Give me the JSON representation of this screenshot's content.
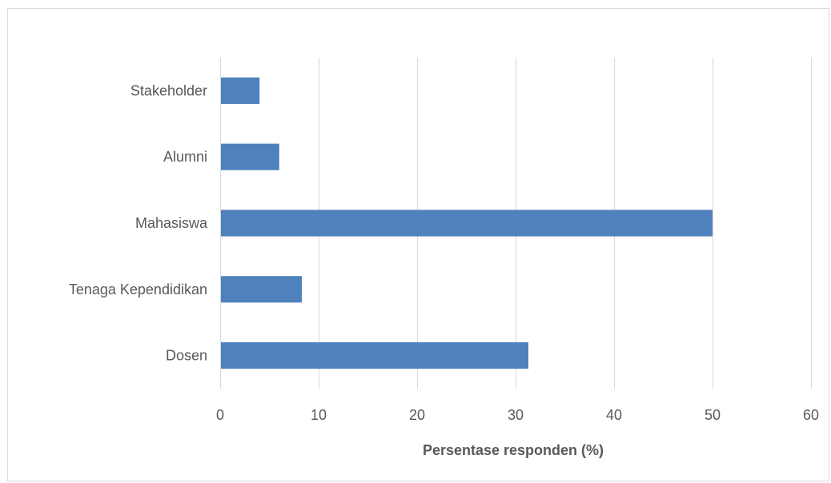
{
  "chart_data": {
    "type": "bar",
    "orientation": "horizontal",
    "categories": [
      "Stakeholder",
      "Alumni",
      "Mahasiswa",
      "Tenaga Kependidikan",
      "Dosen"
    ],
    "values": [
      4,
      6,
      50,
      8.3,
      31.3
    ],
    "xlabel": "Persentase responden (%)",
    "ylabel": "",
    "xlim": [
      0,
      60
    ],
    "xticks": [
      "0",
      "10",
      "20",
      "30",
      "40",
      "50",
      "60"
    ],
    "grid": true,
    "legend": "none",
    "colors": {
      "bar": "#4f81bd",
      "grid": "#d9d9d9",
      "text": "#595959"
    }
  }
}
